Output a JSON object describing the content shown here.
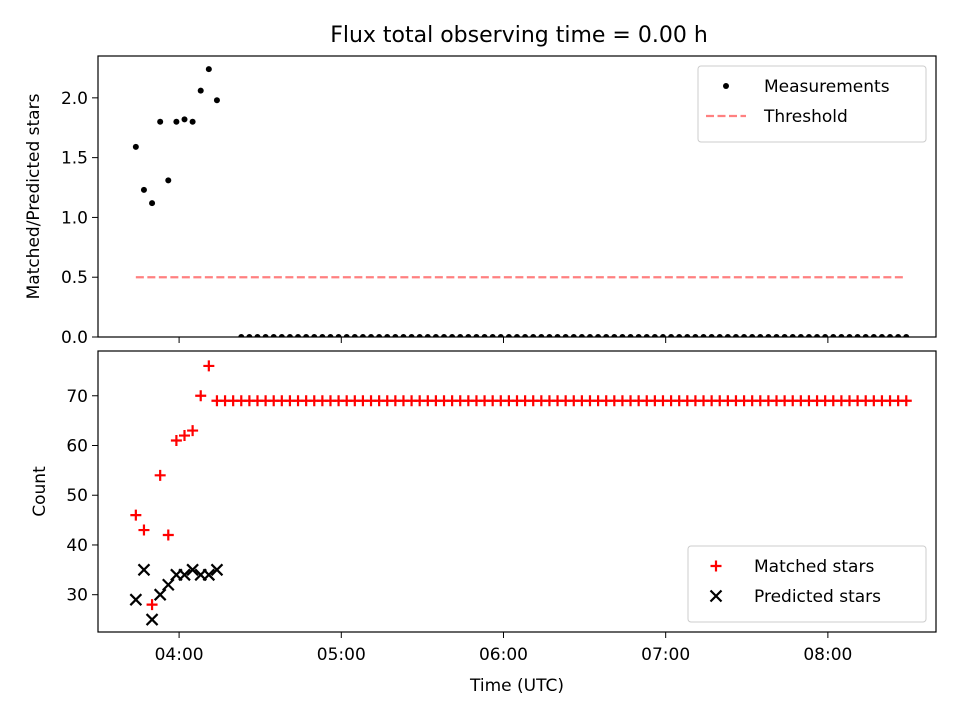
{
  "chart_data": [
    {
      "type": "scatter",
      "title": "Flux total observing time = 0.00 h",
      "xlabel": "",
      "ylabel": "Matched/Predicted stars",
      "xlim": [
        "03:30",
        "08:40"
      ],
      "ylim": [
        0,
        2.35
      ],
      "yticks": [
        "0.0",
        "0.5",
        "1.0",
        "1.5",
        "2.0"
      ],
      "xticks": [
        "04:00",
        "05:00",
        "06:00",
        "07:00",
        "08:00"
      ],
      "show_xtick_labels": false,
      "legend": {
        "placement": "top-right",
        "entries": [
          "Measurements",
          "Threshold"
        ]
      },
      "series": [
        {
          "name": "Measurements",
          "marker": "dot",
          "color": "#000000",
          "points": [
            [
              "03:44",
              1.59
            ],
            [
              "03:47",
              1.23
            ],
            [
              "03:50",
              1.12
            ],
            [
              "03:53",
              1.8
            ],
            [
              "03:56",
              1.31
            ],
            [
              "03:59",
              1.8
            ],
            [
              "04:02",
              1.82
            ],
            [
              "04:05",
              1.8
            ],
            [
              "04:08",
              2.06
            ],
            [
              "04:11",
              2.24
            ],
            [
              "04:14",
              1.98
            ],
            [
              "04:23",
              0
            ],
            [
              "04:26",
              0
            ],
            [
              "04:29",
              0
            ],
            [
              "04:32",
              0
            ],
            [
              "04:35",
              0
            ],
            [
              "04:38",
              0
            ],
            [
              "04:41",
              0
            ],
            [
              "04:44",
              0
            ],
            [
              "04:47",
              0
            ],
            [
              "04:50",
              0
            ],
            [
              "04:53",
              0
            ],
            [
              "04:56",
              0
            ],
            [
              "04:59",
              0
            ],
            [
              "05:02",
              0
            ],
            [
              "05:05",
              0
            ],
            [
              "05:08",
              0
            ],
            [
              "05:11",
              0
            ],
            [
              "05:14",
              0
            ],
            [
              "05:17",
              0
            ],
            [
              "05:20",
              0
            ],
            [
              "05:23",
              0
            ],
            [
              "05:26",
              0
            ],
            [
              "05:29",
              0
            ],
            [
              "05:32",
              0
            ],
            [
              "05:35",
              0
            ],
            [
              "05:38",
              0
            ],
            [
              "05:41",
              0
            ],
            [
              "05:44",
              0
            ],
            [
              "05:47",
              0
            ],
            [
              "05:50",
              0
            ],
            [
              "05:53",
              0
            ],
            [
              "05:56",
              0
            ],
            [
              "05:59",
              0
            ],
            [
              "06:02",
              0
            ],
            [
              "06:05",
              0
            ],
            [
              "06:08",
              0
            ],
            [
              "06:11",
              0
            ],
            [
              "06:14",
              0
            ],
            [
              "06:17",
              0
            ],
            [
              "06:20",
              0
            ],
            [
              "06:23",
              0
            ],
            [
              "06:26",
              0
            ],
            [
              "06:29",
              0
            ],
            [
              "06:32",
              0
            ],
            [
              "06:35",
              0
            ],
            [
              "06:38",
              0
            ],
            [
              "06:41",
              0
            ],
            [
              "06:44",
              0
            ],
            [
              "06:47",
              0
            ],
            [
              "06:50",
              0
            ],
            [
              "06:53",
              0
            ],
            [
              "06:56",
              0
            ],
            [
              "06:59",
              0
            ],
            [
              "07:02",
              0
            ],
            [
              "07:05",
              0
            ],
            [
              "07:08",
              0
            ],
            [
              "07:11",
              0
            ],
            [
              "07:14",
              0
            ],
            [
              "07:17",
              0
            ],
            [
              "07:20",
              0
            ],
            [
              "07:23",
              0
            ],
            [
              "07:26",
              0
            ],
            [
              "07:29",
              0
            ],
            [
              "07:32",
              0
            ],
            [
              "07:35",
              0
            ],
            [
              "07:38",
              0
            ],
            [
              "07:41",
              0
            ],
            [
              "07:44",
              0
            ],
            [
              "07:47",
              0
            ],
            [
              "07:50",
              0
            ],
            [
              "07:53",
              0
            ],
            [
              "07:56",
              0
            ],
            [
              "07:59",
              0
            ],
            [
              "08:02",
              0
            ],
            [
              "08:05",
              0
            ],
            [
              "08:08",
              0
            ],
            [
              "08:11",
              0
            ],
            [
              "08:14",
              0
            ],
            [
              "08:17",
              0
            ],
            [
              "08:20",
              0
            ],
            [
              "08:23",
              0
            ],
            [
              "08:26",
              0
            ],
            [
              "08:29",
              0
            ]
          ]
        },
        {
          "name": "Threshold",
          "marker": "dashed-line",
          "color": "#ff8080",
          "points": [
            [
              "03:44",
              0.5
            ],
            [
              "08:29",
              0.5
            ]
          ]
        }
      ]
    },
    {
      "type": "scatter",
      "title": "",
      "xlabel": "Time (UTC)",
      "ylabel": "Count",
      "xlim": [
        "03:30",
        "08:40"
      ],
      "ylim": [
        22.5,
        79
      ],
      "yticks": [
        "30",
        "40",
        "50",
        "60",
        "70"
      ],
      "xticks": [
        "04:00",
        "05:00",
        "06:00",
        "07:00",
        "08:00"
      ],
      "legend": {
        "placement": "bottom-right",
        "entries": [
          "Matched stars",
          "Predicted stars"
        ]
      },
      "series": [
        {
          "name": "Matched stars",
          "marker": "plus",
          "color": "#ff0000",
          "points": [
            [
              "03:44",
              46
            ],
            [
              "03:47",
              43
            ],
            [
              "03:50",
              28
            ],
            [
              "03:53",
              54
            ],
            [
              "03:56",
              42
            ],
            [
              "03:59",
              61
            ],
            [
              "04:02",
              62
            ],
            [
              "04:05",
              63
            ],
            [
              "04:08",
              70
            ],
            [
              "04:11",
              76
            ],
            [
              "04:14",
              69
            ],
            [
              "04:17",
              69
            ],
            [
              "04:20",
              69
            ],
            [
              "04:23",
              69
            ],
            [
              "04:26",
              69
            ],
            [
              "04:29",
              69
            ],
            [
              "04:32",
              69
            ],
            [
              "04:35",
              69
            ],
            [
              "04:38",
              69
            ],
            [
              "04:41",
              69
            ],
            [
              "04:44",
              69
            ],
            [
              "04:47",
              69
            ],
            [
              "04:50",
              69
            ],
            [
              "04:53",
              69
            ],
            [
              "04:56",
              69
            ],
            [
              "04:59",
              69
            ],
            [
              "05:02",
              69
            ],
            [
              "05:05",
              69
            ],
            [
              "05:08",
              69
            ],
            [
              "05:11",
              69
            ],
            [
              "05:14",
              69
            ],
            [
              "05:17",
              69
            ],
            [
              "05:20",
              69
            ],
            [
              "05:23",
              69
            ],
            [
              "05:26",
              69
            ],
            [
              "05:29",
              69
            ],
            [
              "05:32",
              69
            ],
            [
              "05:35",
              69
            ],
            [
              "05:38",
              69
            ],
            [
              "05:41",
              69
            ],
            [
              "05:44",
              69
            ],
            [
              "05:47",
              69
            ],
            [
              "05:50",
              69
            ],
            [
              "05:53",
              69
            ],
            [
              "05:56",
              69
            ],
            [
              "05:59",
              69
            ],
            [
              "06:02",
              69
            ],
            [
              "06:05",
              69
            ],
            [
              "06:08",
              69
            ],
            [
              "06:11",
              69
            ],
            [
              "06:14",
              69
            ],
            [
              "06:17",
              69
            ],
            [
              "06:20",
              69
            ],
            [
              "06:23",
              69
            ],
            [
              "06:26",
              69
            ],
            [
              "06:29",
              69
            ],
            [
              "06:32",
              69
            ],
            [
              "06:35",
              69
            ],
            [
              "06:38",
              69
            ],
            [
              "06:41",
              69
            ],
            [
              "06:44",
              69
            ],
            [
              "06:47",
              69
            ],
            [
              "06:50",
              69
            ],
            [
              "06:53",
              69
            ],
            [
              "06:56",
              69
            ],
            [
              "06:59",
              69
            ],
            [
              "07:02",
              69
            ],
            [
              "07:05",
              69
            ],
            [
              "07:08",
              69
            ],
            [
              "07:11",
              69
            ],
            [
              "07:14",
              69
            ],
            [
              "07:17",
              69
            ],
            [
              "07:20",
              69
            ],
            [
              "07:23",
              69
            ],
            [
              "07:26",
              69
            ],
            [
              "07:29",
              69
            ],
            [
              "07:32",
              69
            ],
            [
              "07:35",
              69
            ],
            [
              "07:38",
              69
            ],
            [
              "07:41",
              69
            ],
            [
              "07:44",
              69
            ],
            [
              "07:47",
              69
            ],
            [
              "07:50",
              69
            ],
            [
              "07:53",
              69
            ],
            [
              "07:56",
              69
            ],
            [
              "07:59",
              69
            ],
            [
              "08:02",
              69
            ],
            [
              "08:05",
              69
            ],
            [
              "08:08",
              69
            ],
            [
              "08:11",
              69
            ],
            [
              "08:14",
              69
            ],
            [
              "08:17",
              69
            ],
            [
              "08:20",
              69
            ],
            [
              "08:23",
              69
            ],
            [
              "08:26",
              69
            ],
            [
              "08:29",
              69
            ]
          ]
        },
        {
          "name": "Predicted stars",
          "marker": "x",
          "color": "#000000",
          "points": [
            [
              "03:44",
              29
            ],
            [
              "03:47",
              35
            ],
            [
              "03:50",
              25
            ],
            [
              "03:53",
              30
            ],
            [
              "03:56",
              32
            ],
            [
              "03:59",
              34
            ],
            [
              "04:02",
              34
            ],
            [
              "04:05",
              35
            ],
            [
              "04:08",
              34
            ],
            [
              "04:11",
              34
            ],
            [
              "04:14",
              35
            ]
          ]
        }
      ]
    }
  ]
}
